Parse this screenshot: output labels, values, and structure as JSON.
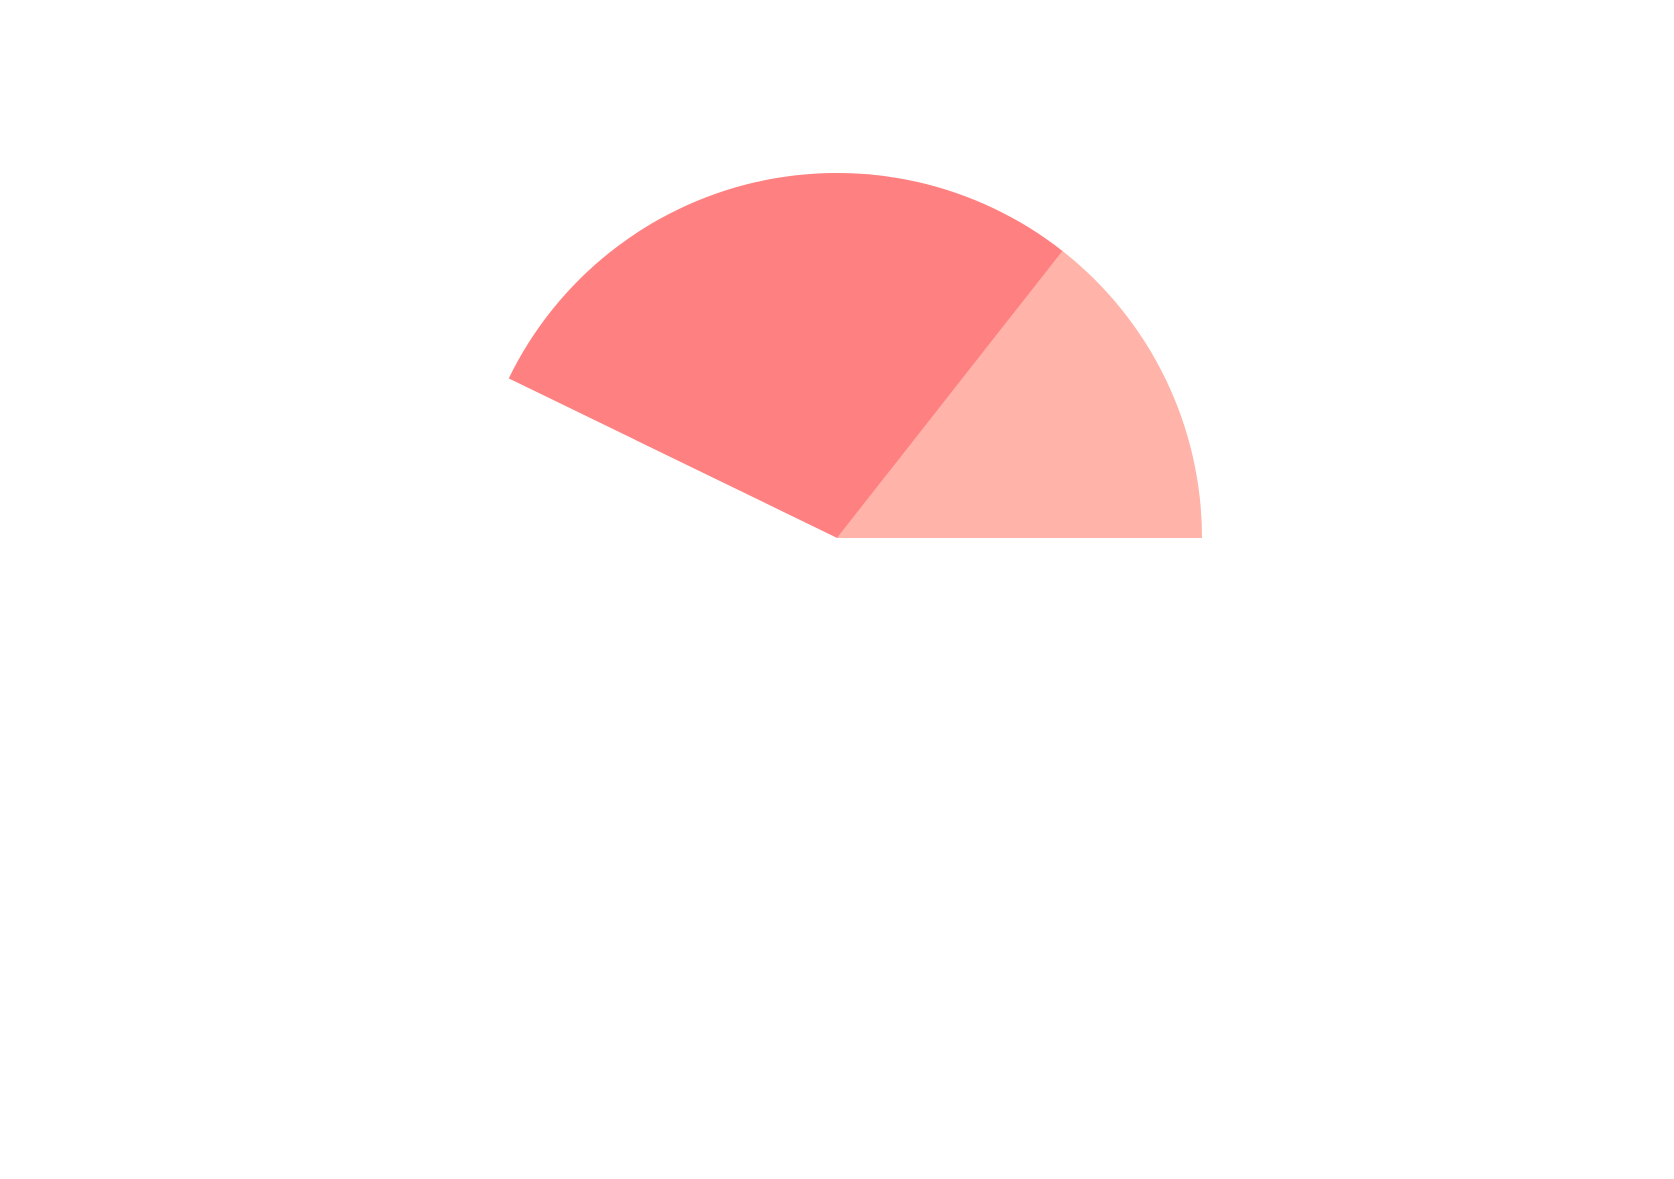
{
  "chart_data": {
    "type": "pie",
    "title": "",
    "start_angle_deg": 0,
    "direction": "counterclockwise",
    "slices": [
      {
        "value": 0.144,
        "color": "#ffb3a9"
      },
      {
        "value": 0.284,
        "color": "#ff8080"
      },
      {
        "value": 0.572,
        "color": "#ffffff"
      }
    ],
    "background_color": "#ffffff"
  }
}
